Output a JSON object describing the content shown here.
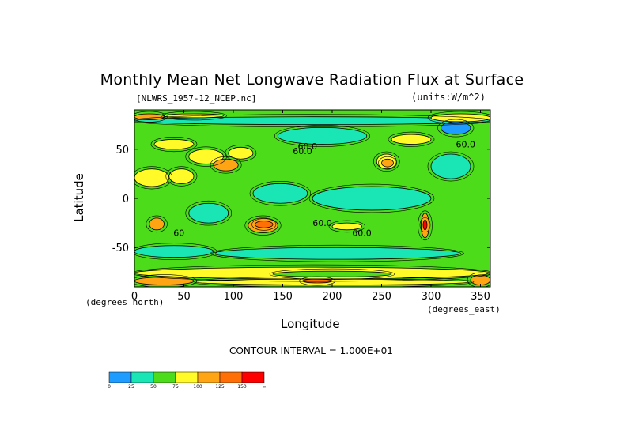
{
  "chart_data": {
    "type": "heatmap",
    "title": "Monthly Mean Net Longwave Radiation Flux at Surface",
    "file_label": "[NLWRS_1957-12_NCEP.nc]",
    "units_label": "(units:W/m^2)",
    "xlabel": "Longitude",
    "ylabel": "Latitude",
    "x_units": "(degrees_north)",
    "x_units_right": "(degrees_east)",
    "x_range": [
      0,
      360
    ],
    "y_range": [
      -90,
      90
    ],
    "x_ticks": [
      0,
      50,
      100,
      150,
      200,
      250,
      300,
      350
    ],
    "y_ticks": [
      50,
      0,
      -50
    ],
    "contour_interval_text": "CONTOUR INTERVAL = 1.000E+01",
    "contour_labels": [
      {
        "text": "60.0",
        "lon": 175,
        "lat": 50
      },
      {
        "text": "60.0",
        "lon": 170,
        "lat": 45
      },
      {
        "text": "60.0",
        "lon": 335,
        "lat": 52
      },
      {
        "text": "60",
        "lon": 45,
        "lat": -38
      },
      {
        "text": "60.0",
        "lon": 190,
        "lat": -28
      },
      {
        "text": "60.0",
        "lon": 230,
        "lat": -38
      }
    ],
    "colorbar": {
      "labels": [
        "0",
        "25",
        "50",
        "75",
        "100",
        "125",
        "150",
        "∞"
      ],
      "colors": [
        "#1e9cff",
        "#19e6b4",
        "#4cdc19",
        "#fffa28",
        "#ffa514",
        "#ff6f05",
        "#ff0000"
      ]
    },
    "regions": [
      {
        "name": "base",
        "lon": [
          0,
          360
        ],
        "lat": [
          -90,
          90
        ],
        "level": 2
      },
      {
        "name": "tropical-band",
        "lon": [
          180,
          300
        ],
        "lat": [
          -12,
          12
        ],
        "level": 1
      },
      {
        "name": "west-pacific",
        "lon": [
          120,
          175
        ],
        "lat": [
          -5,
          15
        ],
        "level": 1
      },
      {
        "name": "indian-ocean",
        "lon": [
          55,
          95
        ],
        "lat": [
          -25,
          -5
        ],
        "level": 1
      },
      {
        "name": "north-atlantic",
        "lon": [
          300,
          340
        ],
        "lat": [
          20,
          45
        ],
        "level": 1
      },
      {
        "name": "n-pacific",
        "lon": [
          145,
          235
        ],
        "lat": [
          55,
          72
        ],
        "level": 1
      },
      {
        "name": "south-ocean",
        "lon": [
          80,
          330
        ],
        "lat": [
          -62,
          -50
        ],
        "level": 1
      },
      {
        "name": "sahara",
        "lon": [
          0,
          35
        ],
        "lat": [
          12,
          30
        ],
        "level": 3
      },
      {
        "name": "arabia",
        "lon": [
          35,
          60
        ],
        "lat": [
          15,
          30
        ],
        "level": 3
      },
      {
        "name": "central-asia",
        "lon": [
          55,
          90
        ],
        "lat": [
          35,
          50
        ],
        "level": 3
      },
      {
        "name": "tibet",
        "lon": [
          80,
          105
        ],
        "lat": [
          28,
          40
        ],
        "level": 4
      },
      {
        "name": "mongolia",
        "lon": [
          95,
          120
        ],
        "lat": [
          40,
          52
        ],
        "level": 3
      },
      {
        "name": "north-america-west",
        "lon": [
          245,
          265
        ],
        "lat": [
          30,
          45
        ],
        "level": 3
      },
      {
        "name": "north-america-hot",
        "lon": [
          250,
          262
        ],
        "lat": [
          32,
          40
        ],
        "level": 4
      },
      {
        "name": "australia",
        "lon": [
          115,
          145
        ],
        "lat": [
          -35,
          -20
        ],
        "level": 4
      },
      {
        "name": "australia-core",
        "lon": [
          122,
          140
        ],
        "lat": [
          -30,
          -23
        ],
        "level": 5
      },
      {
        "name": "south-africa",
        "lon": [
          15,
          30
        ],
        "lat": [
          -32,
          -20
        ],
        "level": 4
      },
      {
        "name": "andes",
        "lon": [
          290,
          298
        ],
        "lat": [
          -40,
          -15
        ],
        "level": 4
      },
      {
        "name": "andes-core",
        "lon": [
          292,
          296
        ],
        "lat": [
          -32,
          -22
        ],
        "level": 6
      },
      {
        "name": "east-pacific-s",
        "lon": [
          200,
          230
        ],
        "lat": [
          -32,
          -25
        ],
        "level": 3
      },
      {
        "name": "arctic-strip",
        "lon": [
          0,
          360
        ],
        "lat": [
          75,
          83
        ],
        "level": 1
      },
      {
        "name": "north-edge-hot",
        "lon": [
          0,
          30
        ],
        "lat": [
          80,
          86
        ],
        "level": 4
      },
      {
        "name": "north-edge-yellow",
        "lon": [
          30,
          90
        ],
        "lat": [
          82,
          86
        ],
        "level": 3
      },
      {
        "name": "north-edge-yellow2",
        "lon": [
          300,
          360
        ],
        "lat": [
          78,
          86
        ],
        "level": 3
      },
      {
        "name": "greenland",
        "lon": [
          310,
          340
        ],
        "lat": [
          65,
          78
        ],
        "level": 0
      },
      {
        "name": "antarctic-band",
        "lon": [
          0,
          360
        ],
        "lat": [
          -82,
          -70
        ],
        "level": 3
      },
      {
        "name": "antarctic-orange",
        "lon": [
          0,
          60
        ],
        "lat": [
          -88,
          -80
        ],
        "level": 4
      },
      {
        "name": "antarctic-orange2",
        "lon": [
          340,
          360
        ],
        "lat": [
          -88,
          -78
        ],
        "level": 4
      },
      {
        "name": "antarctic-yellow",
        "lon": [
          60,
          340
        ],
        "lat": [
          -88,
          -82
        ],
        "level": 3
      },
      {
        "name": "antarctic-red",
        "lon": [
          170,
          200
        ],
        "lat": [
          -86,
          -82
        ],
        "level": 5
      },
      {
        "name": "antarctic-green",
        "lon": [
          140,
          260
        ],
        "lat": [
          -80,
          -74
        ],
        "level": 2
      },
      {
        "name": "southern-cyan",
        "lon": [
          0,
          80
        ],
        "lat": [
          -60,
          -48
        ],
        "level": 1
      },
      {
        "name": "europe-yellow",
        "lon": [
          20,
          60
        ],
        "lat": [
          50,
          60
        ],
        "level": 3
      },
      {
        "name": "canada-yellow",
        "lon": [
          260,
          300
        ],
        "lat": [
          55,
          65
        ],
        "level": 3
      }
    ],
    "grid": false,
    "legend": "bottom-left"
  }
}
